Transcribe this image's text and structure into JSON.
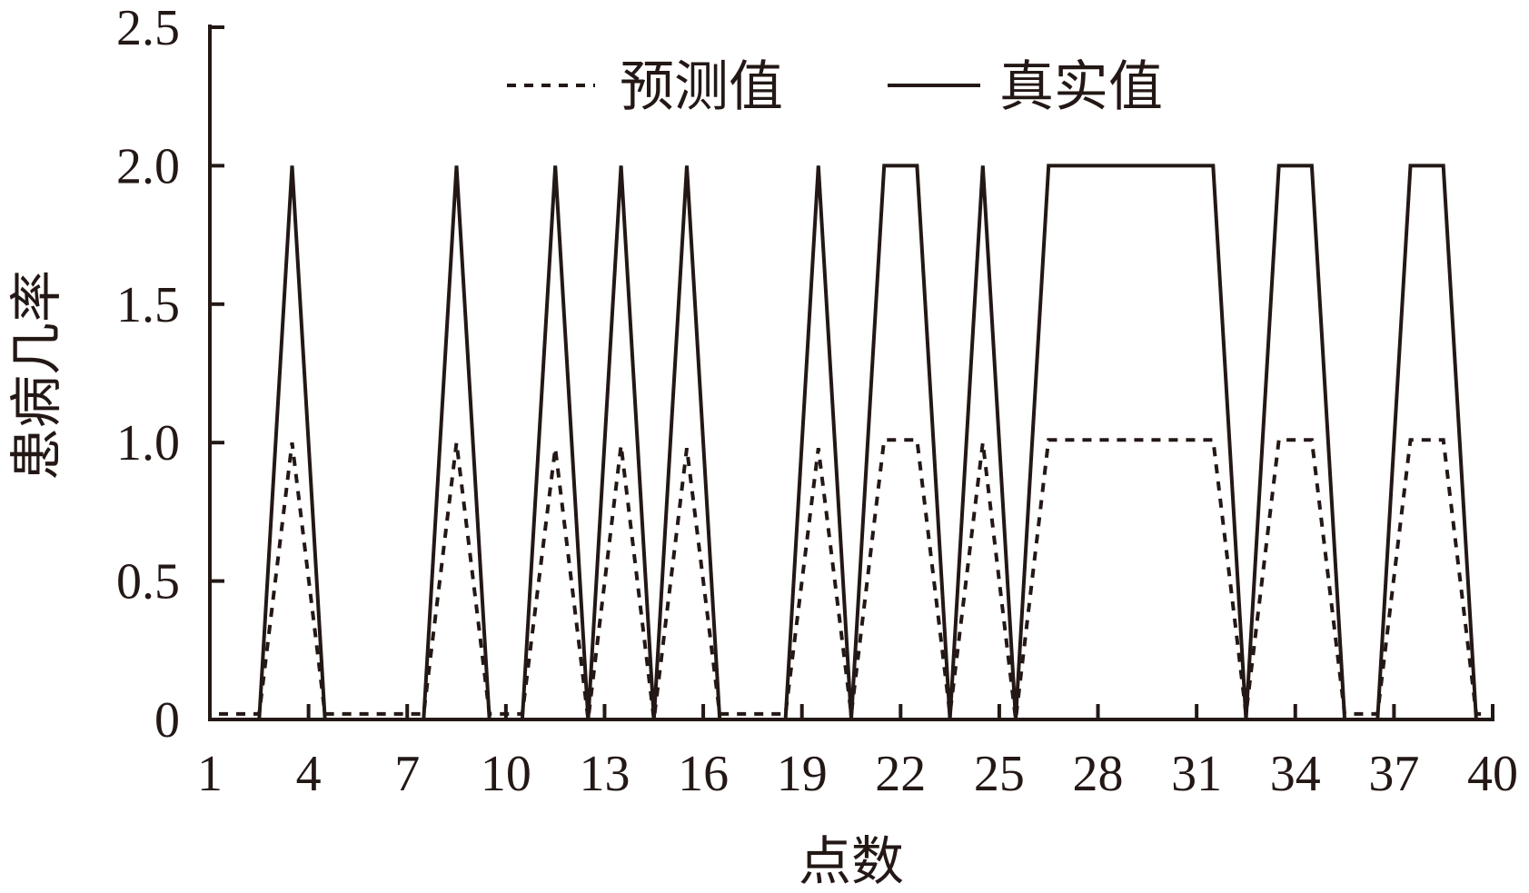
{
  "chart_data": {
    "type": "line",
    "xlabel": "点数",
    "ylabel": "患病几率",
    "ylim": [
      0,
      2.5
    ],
    "xlim": [
      1,
      40
    ],
    "x_ticks": [
      "1",
      "4",
      "7",
      "10",
      "13",
      "16",
      "19",
      "22",
      "25",
      "28",
      "31",
      "34",
      "37",
      "40"
    ],
    "y_ticks": [
      "0",
      "0.5",
      "1.0",
      "1.5",
      "2.0",
      "2.5"
    ],
    "grid": false,
    "legend_position": "top-center",
    "x": [
      1,
      2,
      3,
      4,
      5,
      6,
      7,
      8,
      9,
      10,
      11,
      12,
      13,
      14,
      15,
      16,
      17,
      18,
      19,
      20,
      21,
      22,
      23,
      24,
      25,
      26,
      27,
      28,
      29,
      30,
      31,
      32,
      33,
      34,
      35,
      36,
      37,
      38,
      39
    ],
    "series": [
      {
        "name": "预测值",
        "style": "dotted",
        "color": "#231815",
        "values": [
          0.02,
          0.02,
          1.0,
          0.02,
          0.02,
          0.02,
          0.02,
          1.0,
          0.02,
          0.02,
          0.98,
          0.0,
          0.99,
          0.0,
          0.98,
          0.02,
          0.02,
          0.02,
          0.98,
          0.02,
          1.01,
          1.01,
          0.02,
          1.0,
          0.0,
          1.01,
          1.01,
          1.01,
          1.01,
          1.01,
          1.01,
          0.02,
          1.01,
          1.01,
          0.02,
          0.02,
          1.01,
          1.01,
          0.02
        ]
      },
      {
        "name": "真实值",
        "style": "solid",
        "color": "#231815",
        "values": [
          0,
          0,
          2,
          0,
          0,
          0,
          0,
          2,
          0,
          0,
          2,
          0,
          2,
          0,
          2,
          0,
          0,
          0,
          2,
          0,
          2,
          2,
          0,
          2,
          0,
          2,
          2,
          2,
          2,
          2,
          2,
          0,
          2,
          2,
          0,
          0,
          2,
          2,
          0
        ]
      }
    ]
  }
}
